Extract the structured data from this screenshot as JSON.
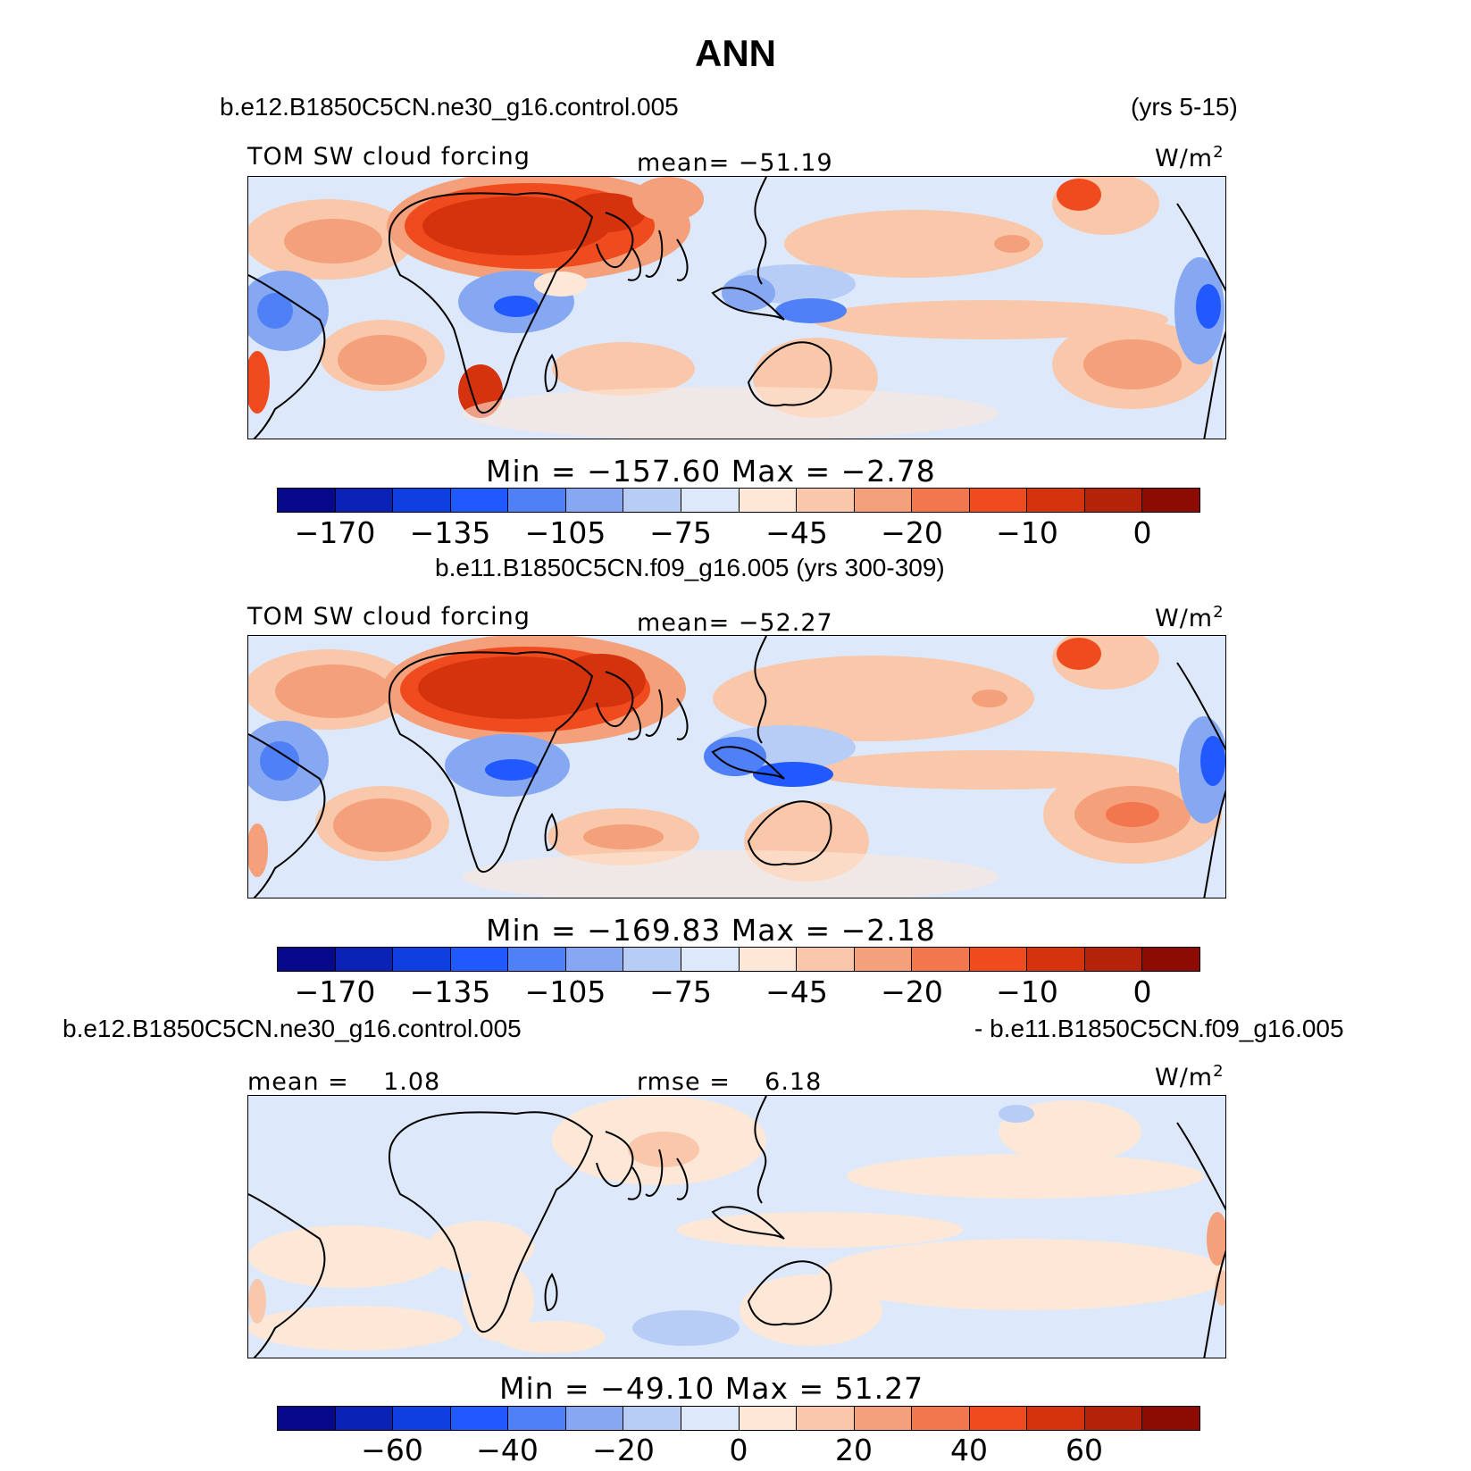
{
  "title": "ANN",
  "colors": [
    "#08088c",
    "#0a23b4",
    "#0f3ee1",
    "#2159ff",
    "#4f80f5",
    "#86a8f3",
    "#b8cdf6",
    "#dde9fb",
    "#fde8d8",
    "#f9c7aa",
    "#f4a07b",
    "#f2764e",
    "#f04b1e",
    "#d5320e",
    "#b32209",
    "#8c0c04"
  ],
  "panels": [
    {
      "case": "b.e12.B1850C5CN.ne30_g16.control.005",
      "years": "(yrs 5-15)",
      "left_label": "TOM SW cloud forcing",
      "center_label": "mean= −51.19",
      "units": "W/m",
      "units_exp": "2",
      "minmax": "Min = −157.60 Max = −2.78",
      "ticks": [
        "−170",
        "−135",
        "−105",
        "−75",
        "−45",
        "−20",
        "−10",
        "0"
      ]
    },
    {
      "case": "b.e11.B1850C5CN.f09_g16.005 (yrs 300-309)",
      "left_label": "TOM SW cloud forcing",
      "center_label": "mean= −52.27",
      "units": "W/m",
      "units_exp": "2",
      "minmax": "Min = −169.83 Max = −2.18",
      "ticks": [
        "−170",
        "−135",
        "−105",
        "−75",
        "−45",
        "−20",
        "−10",
        "0"
      ]
    },
    {
      "case_left": "b.e12.B1850C5CN.ne30_g16.control.005",
      "case_right": "- b.e11.B1850C5CN.f09_g16.005",
      "left_label": "mean =    1.08",
      "center_label": "rmse =    6.18",
      "units": "W/m",
      "units_exp": "2",
      "minmax": "Min = −49.10 Max =  51.27",
      "ticks": [
        "−60",
        "−40",
        "−20",
        "0",
        "20",
        "40",
        "60"
      ]
    }
  ]
}
